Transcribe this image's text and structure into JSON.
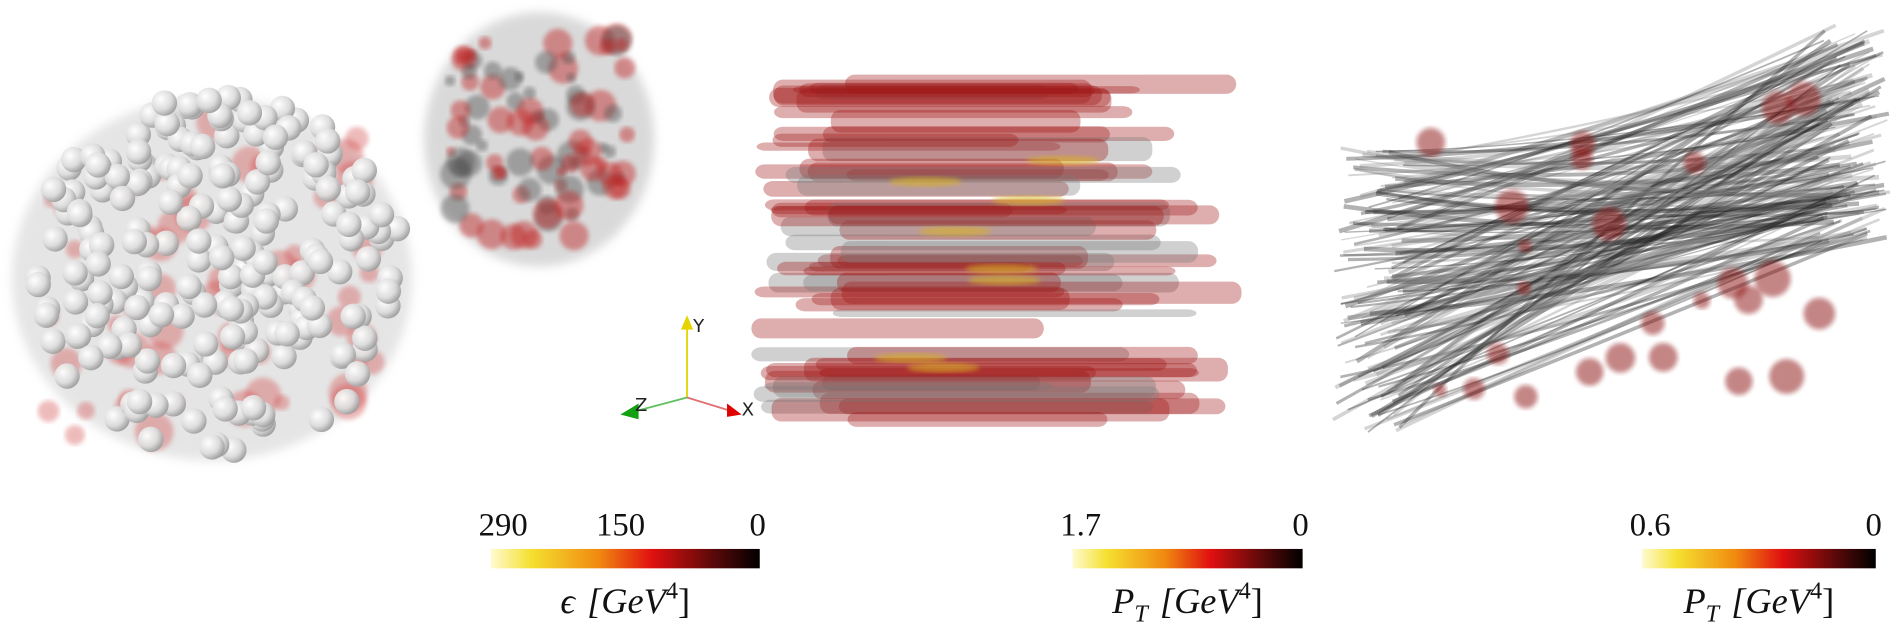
{
  "axes_triad": {
    "y": "Y",
    "z": "Z",
    "x": "X"
  },
  "colorbars": [
    {
      "lim": [
        290,
        0
      ],
      "ticks": [
        290,
        150,
        0
      ],
      "label": {
        "symbol": "ϵ",
        "unit": "[GeV",
        "exponent": "4",
        "close": "]"
      }
    },
    {
      "lim": [
        1.7,
        0
      ],
      "ticks": [
        1.7,
        0
      ],
      "label": {
        "symbol": "P",
        "subscript": "T",
        "unit": "[GeV",
        "exponent": "4",
        "close": "]"
      }
    },
    {
      "lim": [
        0.6,
        0
      ],
      "ticks": [
        0.6,
        0
      ],
      "label": {
        "symbol": "P",
        "subscript": "T",
        "unit": "[GeV",
        "exponent": "4",
        "close": "]"
      }
    }
  ]
}
